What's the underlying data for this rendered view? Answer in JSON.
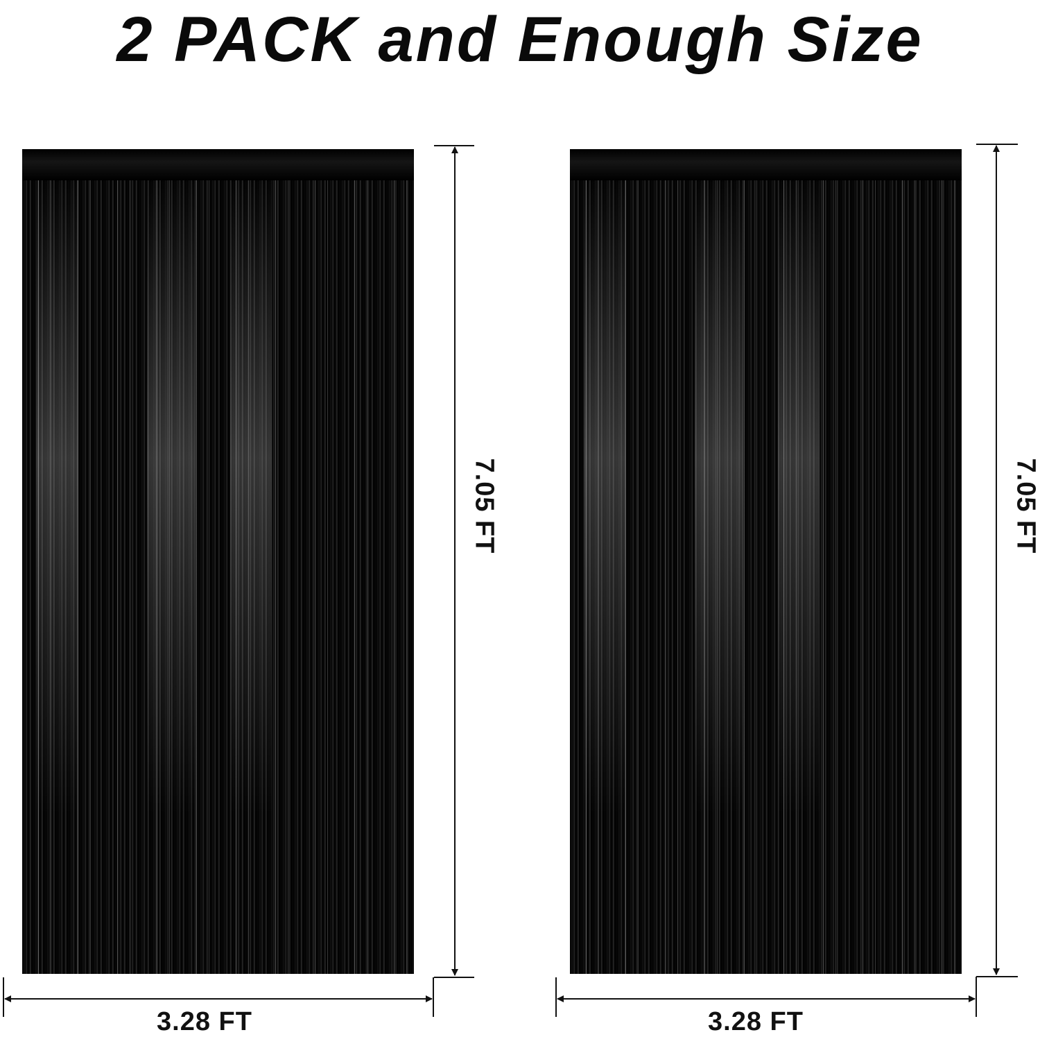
{
  "title": "2 PACK and Enough Size",
  "curtains": [
    {
      "height_label": "7.05 FT",
      "width_label": "3.28 FT",
      "color": "#000000"
    },
    {
      "height_label": "7.05 FT",
      "width_label": "3.28 FT",
      "color": "#000000"
    }
  ]
}
